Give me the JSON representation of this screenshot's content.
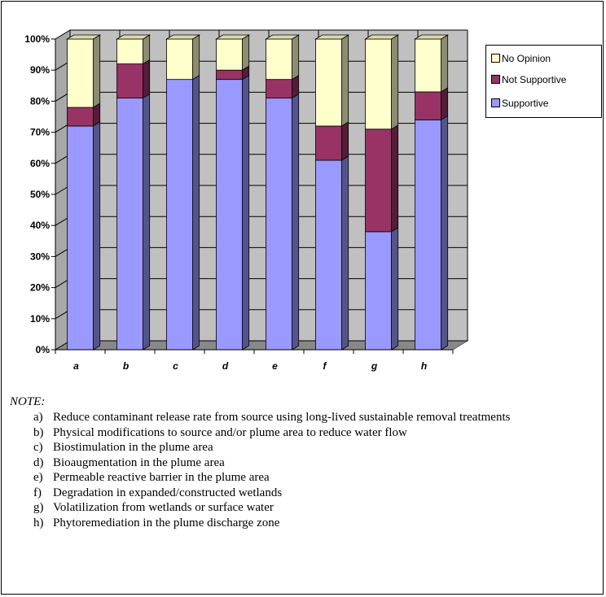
{
  "chart_data": {
    "type": "bar",
    "stacked": true,
    "percent": true,
    "three_d": true,
    "categories": [
      "a",
      "b",
      "c",
      "d",
      "e",
      "f",
      "g",
      "h"
    ],
    "series": [
      {
        "name": "Supportive",
        "color": "#9999ff",
        "values": [
          72,
          81,
          87,
          87,
          81,
          61,
          38,
          74
        ]
      },
      {
        "name": "Not Supportive",
        "color": "#993366",
        "values": [
          6,
          11,
          0,
          3,
          6,
          11,
          33,
          9
        ]
      },
      {
        "name": "No Opinion",
        "color": "#ffffcc",
        "values": [
          22,
          8,
          13,
          10,
          13,
          28,
          29,
          17
        ]
      }
    ],
    "ylim": [
      0,
      100
    ],
    "yticks": [
      "0%",
      "10%",
      "20%",
      "30%",
      "40%",
      "50%",
      "60%",
      "70%",
      "80%",
      "90%",
      "100%"
    ],
    "gridlines": true,
    "legend_position": "right",
    "legend_order": [
      "No Opinion",
      "Not Supportive",
      "Supportive"
    ]
  },
  "notes": {
    "title": "NOTE:",
    "items": [
      {
        "letter": "a)",
        "text": "Reduce contaminant release rate from source using long-lived sustainable removal treatments"
      },
      {
        "letter": "b)",
        "text": "Physical modifications to source and/or plume area to reduce water flow"
      },
      {
        "letter": "c)",
        "text": "Biostimulation in the plume area"
      },
      {
        "letter": "d)",
        "text": "Bioaugmentation in the plume area"
      },
      {
        "letter": "e)",
        "text": "Permeable reactive barrier in the plume area"
      },
      {
        "letter": "f)",
        "text": "Degradation in expanded/constructed wetlands"
      },
      {
        "letter": "g)",
        "text": "Volatilization from wetlands or surface water"
      },
      {
        "letter": "h)",
        "text": "Phytoremediation in the plume discharge zone"
      }
    ]
  }
}
